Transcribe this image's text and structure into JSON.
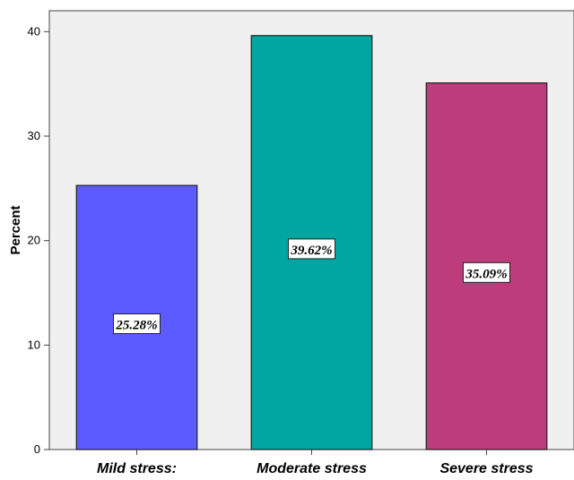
{
  "chart_data": {
    "type": "bar",
    "categories": [
      "Mild stress:",
      "Moderate stress",
      "Severe stress"
    ],
    "values": [
      25.28,
      39.62,
      35.09
    ],
    "data_labels": [
      "25.28%",
      "39.62%",
      "35.09%"
    ],
    "colors": [
      "#5b5bff",
      "#00a6a0",
      "#bc3c7c"
    ],
    "ylabel": "Percent",
    "ylim": [
      0,
      42
    ],
    "yticks": [
      0,
      10,
      20,
      30,
      40
    ],
    "ytick_labels": [
      "0",
      "10",
      "20",
      "30",
      "40"
    ],
    "grid": false,
    "plot_background": "#f0f0f0"
  }
}
